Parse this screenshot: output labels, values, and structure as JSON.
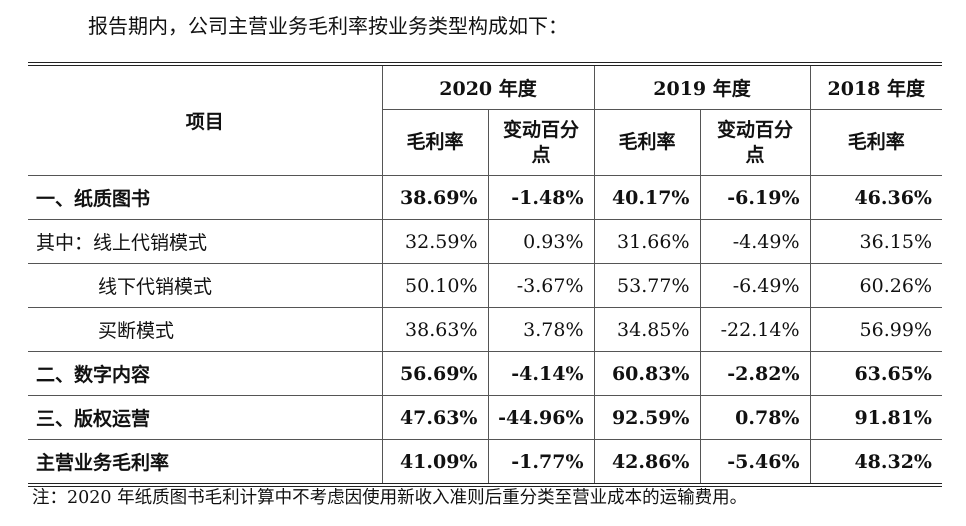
{
  "intro": "报告期内，公司主营业务毛利率按业务类型构成如下：",
  "header": {
    "item": "项目",
    "years": [
      "2020 年度",
      "2019 年度",
      "2018 年度"
    ],
    "gross_margin": "毛利率",
    "change_pp": "变动百分点"
  },
  "rows": [
    {
      "label": "一、纸质图书",
      "gm2020": "38.69%",
      "ch2020": "-1.48%",
      "gm2019": "40.17%",
      "ch2019": "-6.19%",
      "gm2018": "46.36%"
    },
    {
      "label": "其中：线上代销模式",
      "gm2020": "32.59%",
      "ch2020": "0.93%",
      "gm2019": "31.66%",
      "ch2019": "-4.49%",
      "gm2018": "36.15%"
    },
    {
      "label": "线下代销模式",
      "gm2020": "50.10%",
      "ch2020": "-3.67%",
      "gm2019": "53.77%",
      "ch2019": "-6.49%",
      "gm2018": "60.26%"
    },
    {
      "label": "买断模式",
      "gm2020": "38.63%",
      "ch2020": "3.78%",
      "gm2019": "34.85%",
      "ch2019": "-22.14%",
      "gm2018": "56.99%"
    },
    {
      "label": "二、数字内容",
      "gm2020": "56.69%",
      "ch2020": "-4.14%",
      "gm2019": "60.83%",
      "ch2019": "-2.82%",
      "gm2018": "63.65%"
    },
    {
      "label": "三、版权运营",
      "gm2020": "47.63%",
      "ch2020": "-44.96%",
      "gm2019": "92.59%",
      "ch2019": "0.78%",
      "gm2018": "91.81%"
    },
    {
      "label": "主营业务毛利率",
      "gm2020": "41.09%",
      "ch2020": "-1.77%",
      "gm2019": "42.86%",
      "ch2019": "-5.46%",
      "gm2018": "48.32%"
    }
  ],
  "note": "注：2020 年纸质图书毛利计算中不考虑因使用新收入准则后重分类至营业成本的运输费用。"
}
